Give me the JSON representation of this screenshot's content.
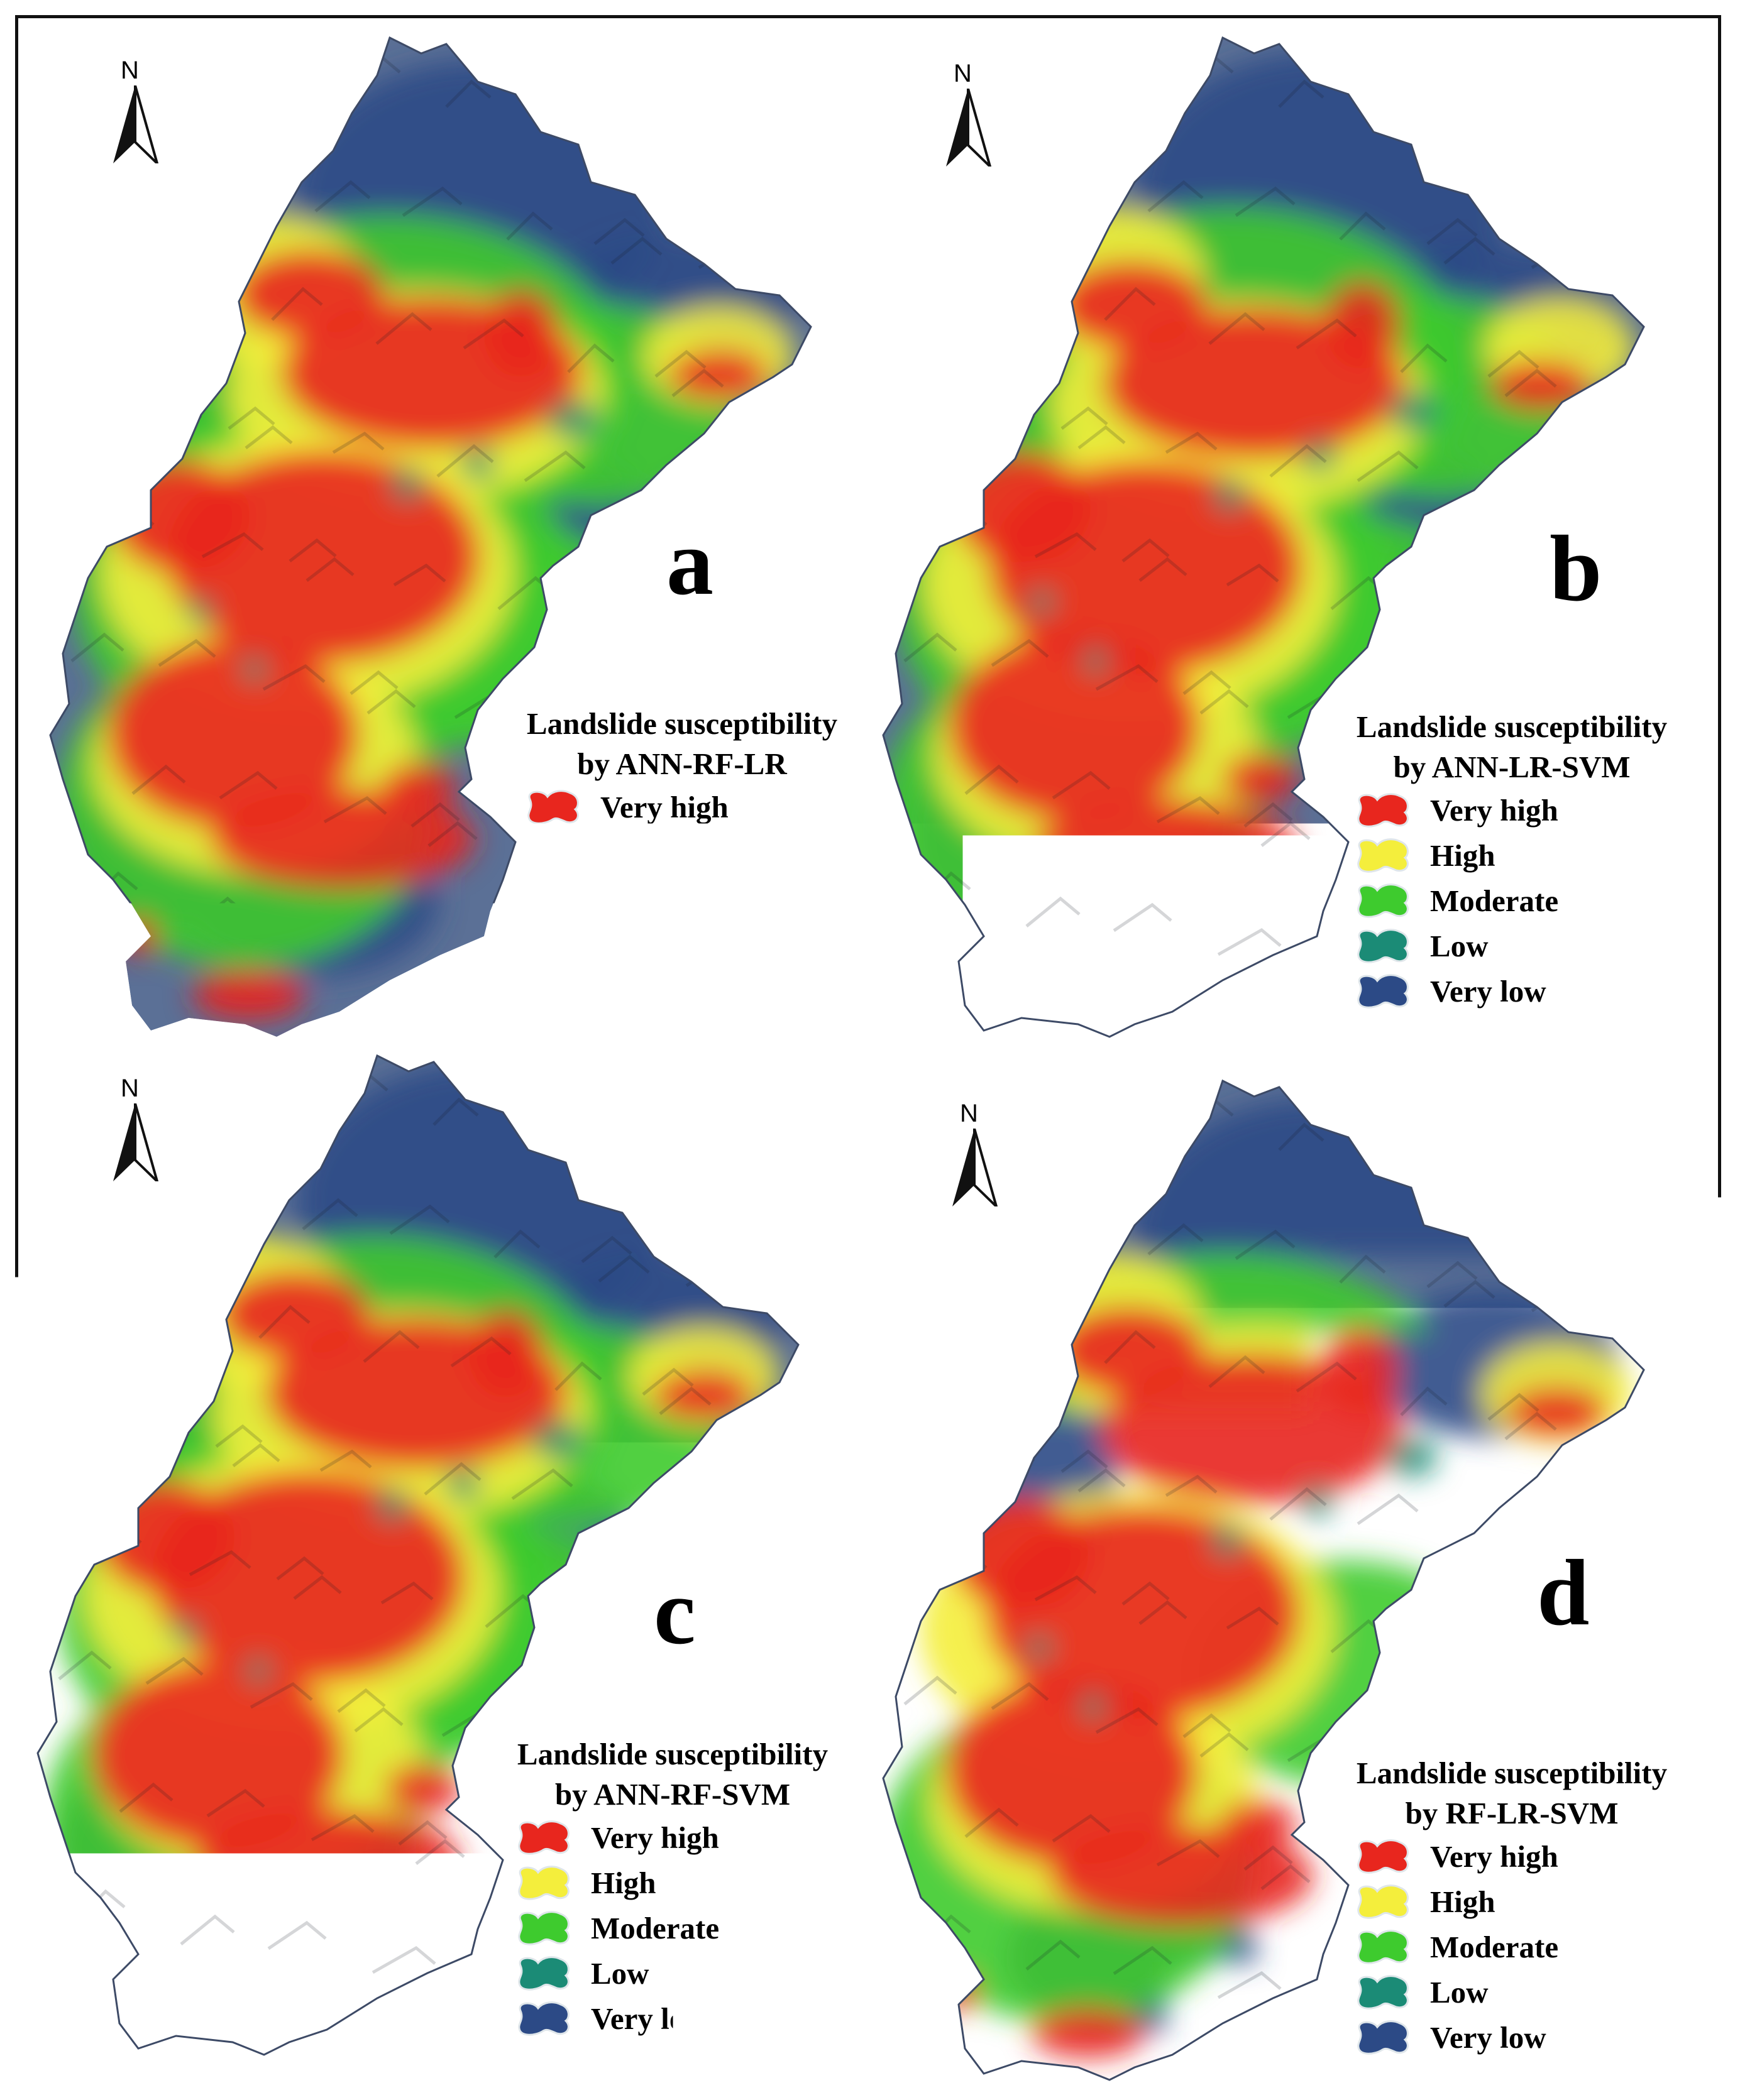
{
  "figure": {
    "palette": {
      "very_high": "#e8261e",
      "high": "#f4ee3c",
      "moderate": "#3ecb2e",
      "low": "#1b8b76",
      "very_low": "#2c4a86",
      "hillshade_tint": "#5b7096"
    },
    "north_arrow_label": "N",
    "legend_labels": [
      "Very high",
      "High",
      "Moderate",
      "Low",
      "Very low"
    ],
    "panels": [
      {
        "letter": "a",
        "title_line1": "Landslide susceptibility",
        "title_line2": "by ANN-RF-LR"
      },
      {
        "letter": "b",
        "title_line1": "Landslide susceptibility",
        "title_line2": "by ANN-LR-SVM"
      },
      {
        "letter": "c",
        "title_line1": "Landslide susceptibility",
        "title_line2": "by ANN-RF-SVM"
      },
      {
        "letter": "d",
        "title_line1": "Landslide susceptibility",
        "title_line2": "by RF-LR-SVM"
      }
    ]
  }
}
